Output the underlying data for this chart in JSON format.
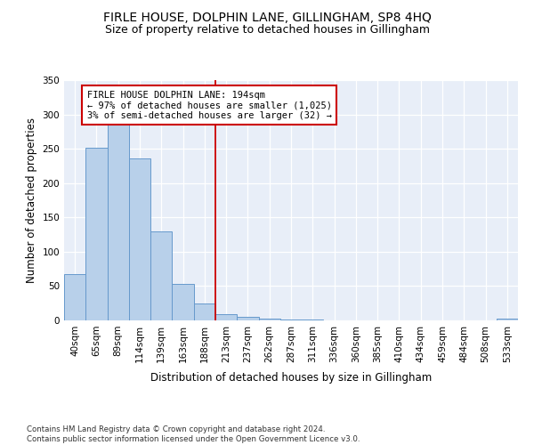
{
  "title": "FIRLE HOUSE, DOLPHIN LANE, GILLINGHAM, SP8 4HQ",
  "subtitle": "Size of property relative to detached houses in Gillingham",
  "xlabel": "Distribution of detached houses by size in Gillingham",
  "ylabel": "Number of detached properties",
  "categories": [
    "40sqm",
    "65sqm",
    "89sqm",
    "114sqm",
    "139sqm",
    "163sqm",
    "188sqm",
    "213sqm",
    "237sqm",
    "262sqm",
    "287sqm",
    "311sqm",
    "336sqm",
    "360sqm",
    "385sqm",
    "410sqm",
    "434sqm",
    "459sqm",
    "484sqm",
    "508sqm",
    "533sqm"
  ],
  "bar_heights": [
    68,
    251,
    286,
    236,
    129,
    53,
    24,
    9,
    5,
    3,
    1,
    1,
    0,
    0,
    0,
    0,
    0,
    0,
    0,
    0,
    3
  ],
  "bar_color": "#b8d0ea",
  "bar_edge_color": "#6699cc",
  "highlight_index": 6,
  "highlight_line_color": "#cc0000",
  "annotation_text": "FIRLE HOUSE DOLPHIN LANE: 194sqm\n← 97% of detached houses are smaller (1,025)\n3% of semi-detached houses are larger (32) →",
  "annotation_box_color": "#cc0000",
  "ylim": [
    0,
    350
  ],
  "yticks": [
    0,
    50,
    100,
    150,
    200,
    250,
    300,
    350
  ],
  "background_color": "#e8eef8",
  "grid_color": "#ffffff",
  "footnote": "Contains HM Land Registry data © Crown copyright and database right 2024.\nContains public sector information licensed under the Open Government Licence v3.0.",
  "title_fontsize": 10,
  "subtitle_fontsize": 9,
  "xlabel_fontsize": 8.5,
  "ylabel_fontsize": 8.5,
  "tick_fontsize": 7.5,
  "annot_fontsize": 7.5,
  "footnote_fontsize": 6.2
}
